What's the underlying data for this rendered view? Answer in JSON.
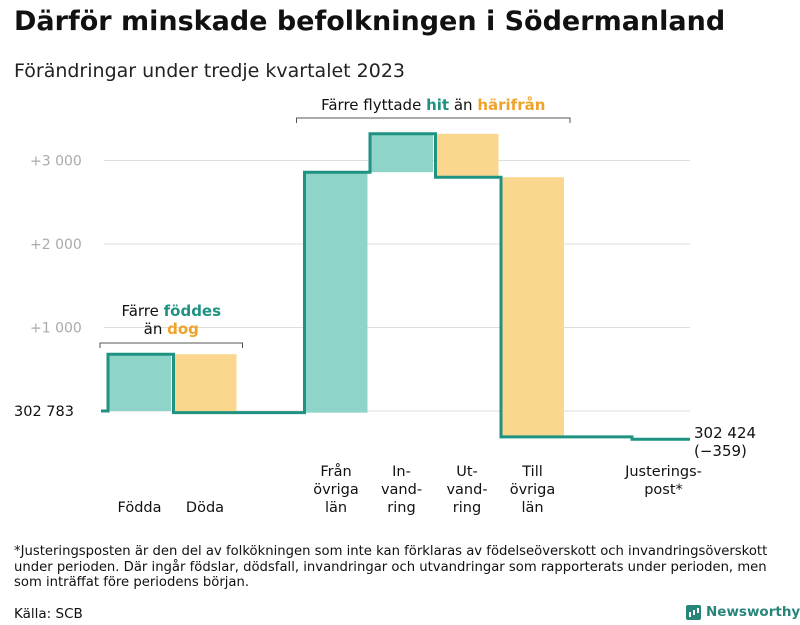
{
  "header": {
    "title": "Därför minskade befolkningen i Södermanland",
    "subtitle": "Förändringar under tredje kvartalet 2023"
  },
  "chart_data": {
    "type": "waterfall",
    "start_value": 302783,
    "end_value": 302424,
    "y_ticks": [
      {
        "value": 1000,
        "label": "+1   000"
      },
      {
        "value": 2000,
        "label": "+2   000"
      },
      {
        "value": 3000,
        "label": "+3   000"
      }
    ],
    "ylim": [
      -500,
      3300
    ],
    "start_label": "302   783",
    "end_label_lines": [
      "302 424",
      "(−359)"
    ],
    "steps": [
      {
        "label_lines": [
          "Födda"
        ],
        "value": 680,
        "kind": "positive"
      },
      {
        "label_lines": [
          "Döda"
        ],
        "value": -700,
        "kind": "negative"
      },
      {
        "label_lines": [
          "Från",
          "övriga",
          "län"
        ],
        "value": 2880,
        "kind": "positive"
      },
      {
        "label_lines": [
          "In-",
          "vand-",
          "ring"
        ],
        "value": 460,
        "kind": "positive"
      },
      {
        "label_lines": [
          "Ut-",
          "vand-",
          "ring"
        ],
        "value": -520,
        "kind": "negative"
      },
      {
        "label_lines": [
          "Till",
          "övriga",
          "län"
        ],
        "value": -3110,
        "kind": "negative"
      },
      {
        "label_lines": [
          "Justerings-",
          "post*"
        ],
        "value": -29,
        "kind": "adjustment"
      }
    ],
    "annotations": [
      {
        "parts": [
          {
            "text": "Färre ",
            "tone": "plain"
          },
          {
            "text": "föddes",
            "tone": "teal"
          }
        ],
        "parts2": [
          {
            "text": "än ",
            "tone": "plain"
          },
          {
            "text": "dog",
            "tone": "orange"
          }
        ],
        "from_step": 0,
        "to_step": 1
      },
      {
        "parts": [
          {
            "text": "Färre flyttade ",
            "tone": "plain"
          },
          {
            "text": "hit",
            "tone": "teal"
          },
          {
            "text": "  än ",
            "tone": "plain"
          },
          {
            "text": "härifrån",
            "tone": "orange"
          }
        ],
        "parts2": [],
        "from_step": 2,
        "to_step": 5
      }
    ],
    "colors": {
      "positive_fill": "#8ed4c9",
      "negative_fill": "#fad68f",
      "line": "#1f9282",
      "teal_text": "#1f9282",
      "orange_text": "#f0a32a",
      "grid": "#dddddd",
      "tick_text": "#aaaaaa",
      "bracket": "#555555"
    }
  },
  "footer": {
    "footnote": "*Justeringsposten är den del av folkökningen som inte kan förklaras av födelseöverskott och invandringsöverskott under perioden. Där ingår födslar, dödsfall, invandringar och utvandringar som rapporterats under perioden, men som inträffat före periodens början.",
    "source": "Källa: SCB",
    "brand": "Newsworthy"
  }
}
